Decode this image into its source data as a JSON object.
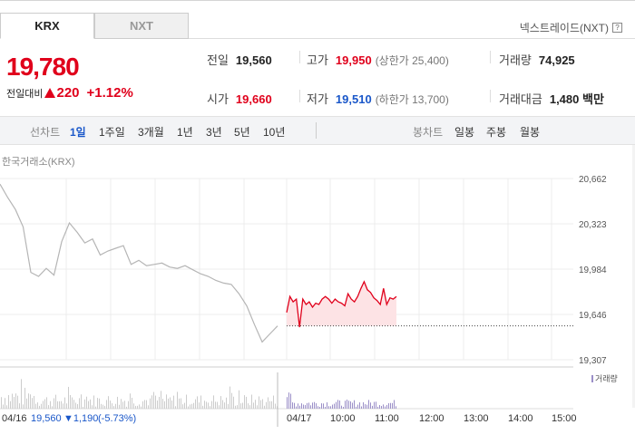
{
  "tabs": [
    {
      "label": "KRX",
      "active": true
    },
    {
      "label": "NXT",
      "active": false
    }
  ],
  "nxt_link": {
    "label": "넥스트레이드(NXT)",
    "icon": "?"
  },
  "price": {
    "current": "19,780",
    "change_label": "전일대비",
    "change": "220",
    "percent": "+1.12%",
    "direction": "up"
  },
  "stats": {
    "prev_close": {
      "label": "전일",
      "value": "19,560"
    },
    "high": {
      "label": "고가",
      "value": "19,950",
      "sub": "(상한가 25,400)"
    },
    "volume": {
      "label": "거래량",
      "value": "74,925"
    },
    "open": {
      "label": "시가",
      "value": "19,660"
    },
    "low": {
      "label": "저가",
      "value": "19,510",
      "sub": "(하한가 13,700)"
    },
    "trade_value": {
      "label": "거래대금",
      "value": "1,480 백만"
    }
  },
  "period_bar": {
    "line_chart_label": "선차트",
    "periods": [
      "1일",
      "1주일",
      "3개월",
      "1년",
      "3년",
      "5년",
      "10년"
    ],
    "active_period": "1일",
    "candle_label": "봉차트",
    "candles": [
      "일봉",
      "주봉",
      "월봉"
    ]
  },
  "exchange_label": "한국거래소(KRX)",
  "colors": {
    "up": "#e0001b",
    "down": "#1a57c9",
    "prev_day_line": "#b5b5b5",
    "today_fill": "#fde3e5",
    "volume_prev": "#cccccc",
    "volume_today": "#9b8fc8"
  },
  "chart_data": {
    "type": "line",
    "y_ticks": [
      "20,662",
      "20,323",
      "19,984",
      "19,646",
      "19,307"
    ],
    "ylim": [
      19307,
      20662
    ],
    "previous_day_close": 19560,
    "x_labels": [
      "04/16",
      "04/17",
      "10:00",
      "11:00",
      "12:00",
      "13:00",
      "14:00",
      "15:00"
    ],
    "volume_legend": "거래량",
    "prev_day_info": {
      "date": "04/16",
      "close": "19,560",
      "change": "▼1,190",
      "percent": "(-5.73%)"
    },
    "series": [
      {
        "name": "04/16",
        "values": [
          20620,
          20520,
          20430,
          20300,
          19960,
          19930,
          19990,
          19940,
          20190,
          20330,
          20260,
          20180,
          20210,
          20090,
          20120,
          20140,
          20160,
          20020,
          20050,
          20010,
          20020,
          20030,
          20000,
          19990,
          20010,
          19980,
          19950,
          19930,
          19900,
          19880,
          19870,
          19800,
          19710,
          19570,
          19440,
          19500,
          19560
        ]
      },
      {
        "name": "04/17",
        "values": [
          19660,
          19780,
          19740,
          19760,
          19550,
          19760,
          19720,
          19740,
          19700,
          19730,
          19720,
          19760,
          19780,
          19760,
          19730,
          19760,
          19740,
          19730,
          19710,
          19800,
          19760,
          19740,
          19780,
          19840,
          19890,
          19830,
          19810,
          19770,
          19750,
          19720,
          19840,
          19720,
          19770,
          19760,
          19780
        ]
      }
    ]
  }
}
